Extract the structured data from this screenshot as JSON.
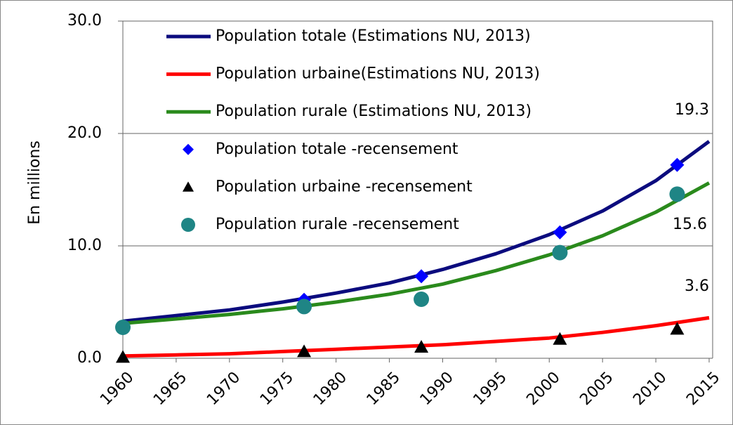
{
  "chart_data": {
    "type": "line",
    "y_label": "En millions",
    "xlim": [
      1960,
      2015
    ],
    "xticks": [
      1960,
      1965,
      1970,
      1975,
      1980,
      1985,
      1990,
      1995,
      2000,
      2005,
      2010,
      2015
    ],
    "ylim": [
      0,
      30
    ],
    "yticks": [
      {
        "value": 0,
        "label": "0.0"
      },
      {
        "value": 10,
        "label": "10.0"
      },
      {
        "value": 20,
        "label": "20.0"
      },
      {
        "value": 30,
        "label": "30.0"
      }
    ],
    "grid": true,
    "legend": "top-left",
    "series": [
      {
        "name": "Population totale (Estimations NU, 2013)",
        "type": "line",
        "color": "#0b0b7e",
        "x": [
          1960,
          1965,
          1970,
          1975,
          1980,
          1985,
          1990,
          1995,
          2000,
          2005,
          2010,
          2015
        ],
        "values": [
          3.3,
          3.8,
          4.3,
          5.0,
          5.8,
          6.7,
          7.9,
          9.3,
          11.0,
          13.1,
          15.8,
          19.3
        ]
      },
      {
        "name": "Population urbaine(Estimations NU, 2013)",
        "type": "line",
        "color": "#ff0000",
        "x": [
          1960,
          1965,
          1970,
          1975,
          1980,
          1985,
          1990,
          1995,
          2000,
          2005,
          2010,
          2015
        ],
        "values": [
          0.2,
          0.3,
          0.4,
          0.6,
          0.8,
          1.0,
          1.2,
          1.5,
          1.8,
          2.3,
          2.9,
          3.6
        ]
      },
      {
        "name": "Population  rurale (Estimations NU, 2013)",
        "type": "line",
        "color": "#2a8a1c",
        "x": [
          1960,
          1965,
          1970,
          1975,
          1980,
          1985,
          1990,
          1995,
          2000,
          2005,
          2010,
          2015
        ],
        "values": [
          3.1,
          3.5,
          3.9,
          4.4,
          5.0,
          5.7,
          6.6,
          7.8,
          9.2,
          10.9,
          13.0,
          15.6
        ]
      },
      {
        "name": "Population totale -recensement",
        "type": "scatter",
        "marker": "diamond",
        "color": "#0000ff",
        "x": [
          1977,
          1988,
          2001,
          2012
        ],
        "values": [
          5.2,
          7.3,
          11.2,
          17.2
        ]
      },
      {
        "name": "Population urbaine -recensement",
        "type": "scatter",
        "marker": "triangle",
        "color": "#000000",
        "x": [
          1960,
          1977,
          1988,
          2001,
          2012
        ],
        "values": [
          0.1,
          0.6,
          1.0,
          1.7,
          2.6
        ]
      },
      {
        "name": "Population  rurale -recensement",
        "type": "scatter",
        "marker": "circle",
        "color": "#1f8585",
        "x": [
          1960,
          1977,
          1988,
          2001,
          2012
        ],
        "values": [
          2.75,
          4.6,
          5.25,
          9.4,
          14.6
        ]
      }
    ],
    "annotations": [
      "19.3",
      "15.6",
      "3.6"
    ]
  }
}
